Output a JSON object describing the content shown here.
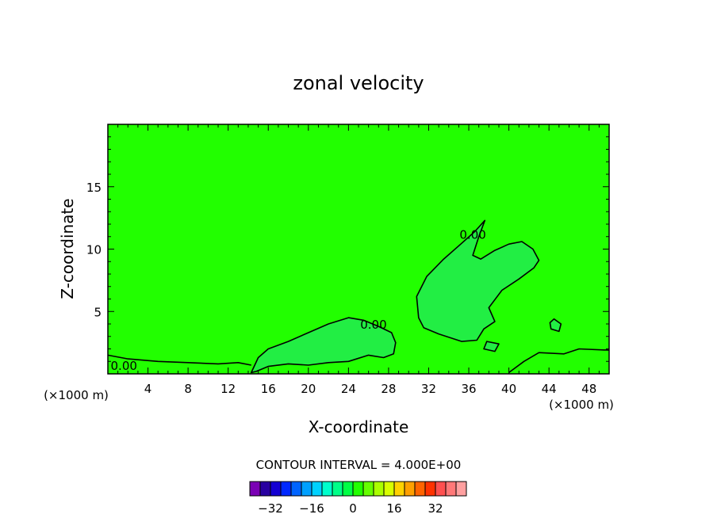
{
  "chart_data": {
    "type": "contour",
    "title": "zonal velocity",
    "xlabel": "X-coordinate",
    "ylabel": "Z-coordinate",
    "x_unit": "(×1000 m)",
    "x_unit_right": "(×1000 m)",
    "xlim": [
      0,
      50
    ],
    "ylim": [
      0,
      20
    ],
    "x_ticks": [
      "4",
      "8",
      "12",
      "16",
      "20",
      "24",
      "28",
      "32",
      "36",
      "40",
      "44",
      "48"
    ],
    "y_ticks": [
      "5",
      "10",
      "15"
    ],
    "contour_interval_text": "CONTOUR INTERVAL = 4.000E+00",
    "contour_labels": [
      {
        "text": "0.00",
        "x": 36.4,
        "z": 11.2
      },
      {
        "text": "0.00",
        "x": 26.5,
        "z": 4.0
      },
      {
        "text": "0.00",
        "x": 1.6,
        "z": 0.7
      }
    ],
    "background_level_color": "#22ff00",
    "positive_region_color": "#22ee44",
    "zero_contours": [
      [
        [
          14.3,
          0.1
        ],
        [
          15,
          1.3
        ],
        [
          16,
          2.0
        ],
        [
          18,
          2.6
        ],
        [
          20,
          3.3
        ],
        [
          22,
          4.0
        ],
        [
          24,
          4.5
        ],
        [
          25.5,
          4.3
        ],
        [
          27,
          3.8
        ],
        [
          28.3,
          3.3
        ],
        [
          28.7,
          2.5
        ],
        [
          28.5,
          1.6
        ],
        [
          27.5,
          1.3
        ],
        [
          26,
          1.5
        ],
        [
          24,
          1.0
        ],
        [
          22,
          0.9
        ],
        [
          20,
          0.7
        ],
        [
          18,
          0.8
        ],
        [
          16,
          0.6
        ],
        [
          14.8,
          0.2
        ],
        [
          14.3,
          0.1
        ]
      ],
      [
        [
          31,
          4.5
        ],
        [
          30.8,
          6.2
        ],
        [
          31.8,
          7.8
        ],
        [
          33.5,
          9.2
        ],
        [
          35.2,
          10.4
        ],
        [
          36.6,
          11.4
        ],
        [
          37.6,
          12.3
        ],
        [
          37,
          11.0
        ],
        [
          36.4,
          9.5
        ],
        [
          37.2,
          9.2
        ],
        [
          38.6,
          9.9
        ],
        [
          40,
          10.4
        ],
        [
          41.3,
          10.6
        ],
        [
          42.4,
          10.0
        ],
        [
          43,
          9.1
        ],
        [
          42.5,
          8.5
        ],
        [
          41,
          7.6
        ],
        [
          39.3,
          6.7
        ],
        [
          38,
          5.3
        ],
        [
          38.6,
          4.2
        ],
        [
          37.5,
          3.6
        ],
        [
          36.8,
          2.7
        ],
        [
          35.3,
          2.6
        ],
        [
          33,
          3.2
        ],
        [
          31.5,
          3.7
        ],
        [
          31,
          4.5
        ]
      ],
      [
        [
          0,
          1.5
        ],
        [
          2,
          1.2
        ],
        [
          5,
          1.0
        ],
        [
          8,
          0.9
        ],
        [
          11,
          0.8
        ],
        [
          13,
          0.9
        ],
        [
          14.3,
          0.7
        ]
      ],
      [
        [
          40,
          0.1
        ],
        [
          41.5,
          1.0
        ],
        [
          43,
          1.7
        ],
        [
          45.5,
          1.6
        ],
        [
          47,
          2.0
        ],
        [
          50,
          1.9
        ]
      ],
      [
        [
          44.5,
          4.4
        ],
        [
          45.2,
          4.0
        ],
        [
          45.0,
          3.4
        ],
        [
          44.2,
          3.6
        ],
        [
          44.1,
          4.1
        ],
        [
          44.5,
          4.4
        ]
      ],
      [
        [
          37.8,
          2.6
        ],
        [
          39,
          2.4
        ],
        [
          38.6,
          1.8
        ],
        [
          37.5,
          2.0
        ],
        [
          37.8,
          2.6
        ]
      ]
    ],
    "colorbar": {
      "colors": [
        "#7a00b4",
        "#2800a0",
        "#1400d2",
        "#0028ff",
        "#0064ff",
        "#00a0ff",
        "#00d2ff",
        "#00ffcc",
        "#00ff88",
        "#00ff44",
        "#22ff00",
        "#66ff00",
        "#aaff00",
        "#d8ff00",
        "#ffd200",
        "#ffa000",
        "#ff6400",
        "#ff3200",
        "#ff5050",
        "#ff7878",
        "#ffa0a0"
      ],
      "tick_labels": [
        "-32",
        "-16",
        "0",
        "16",
        "32"
      ]
    }
  }
}
